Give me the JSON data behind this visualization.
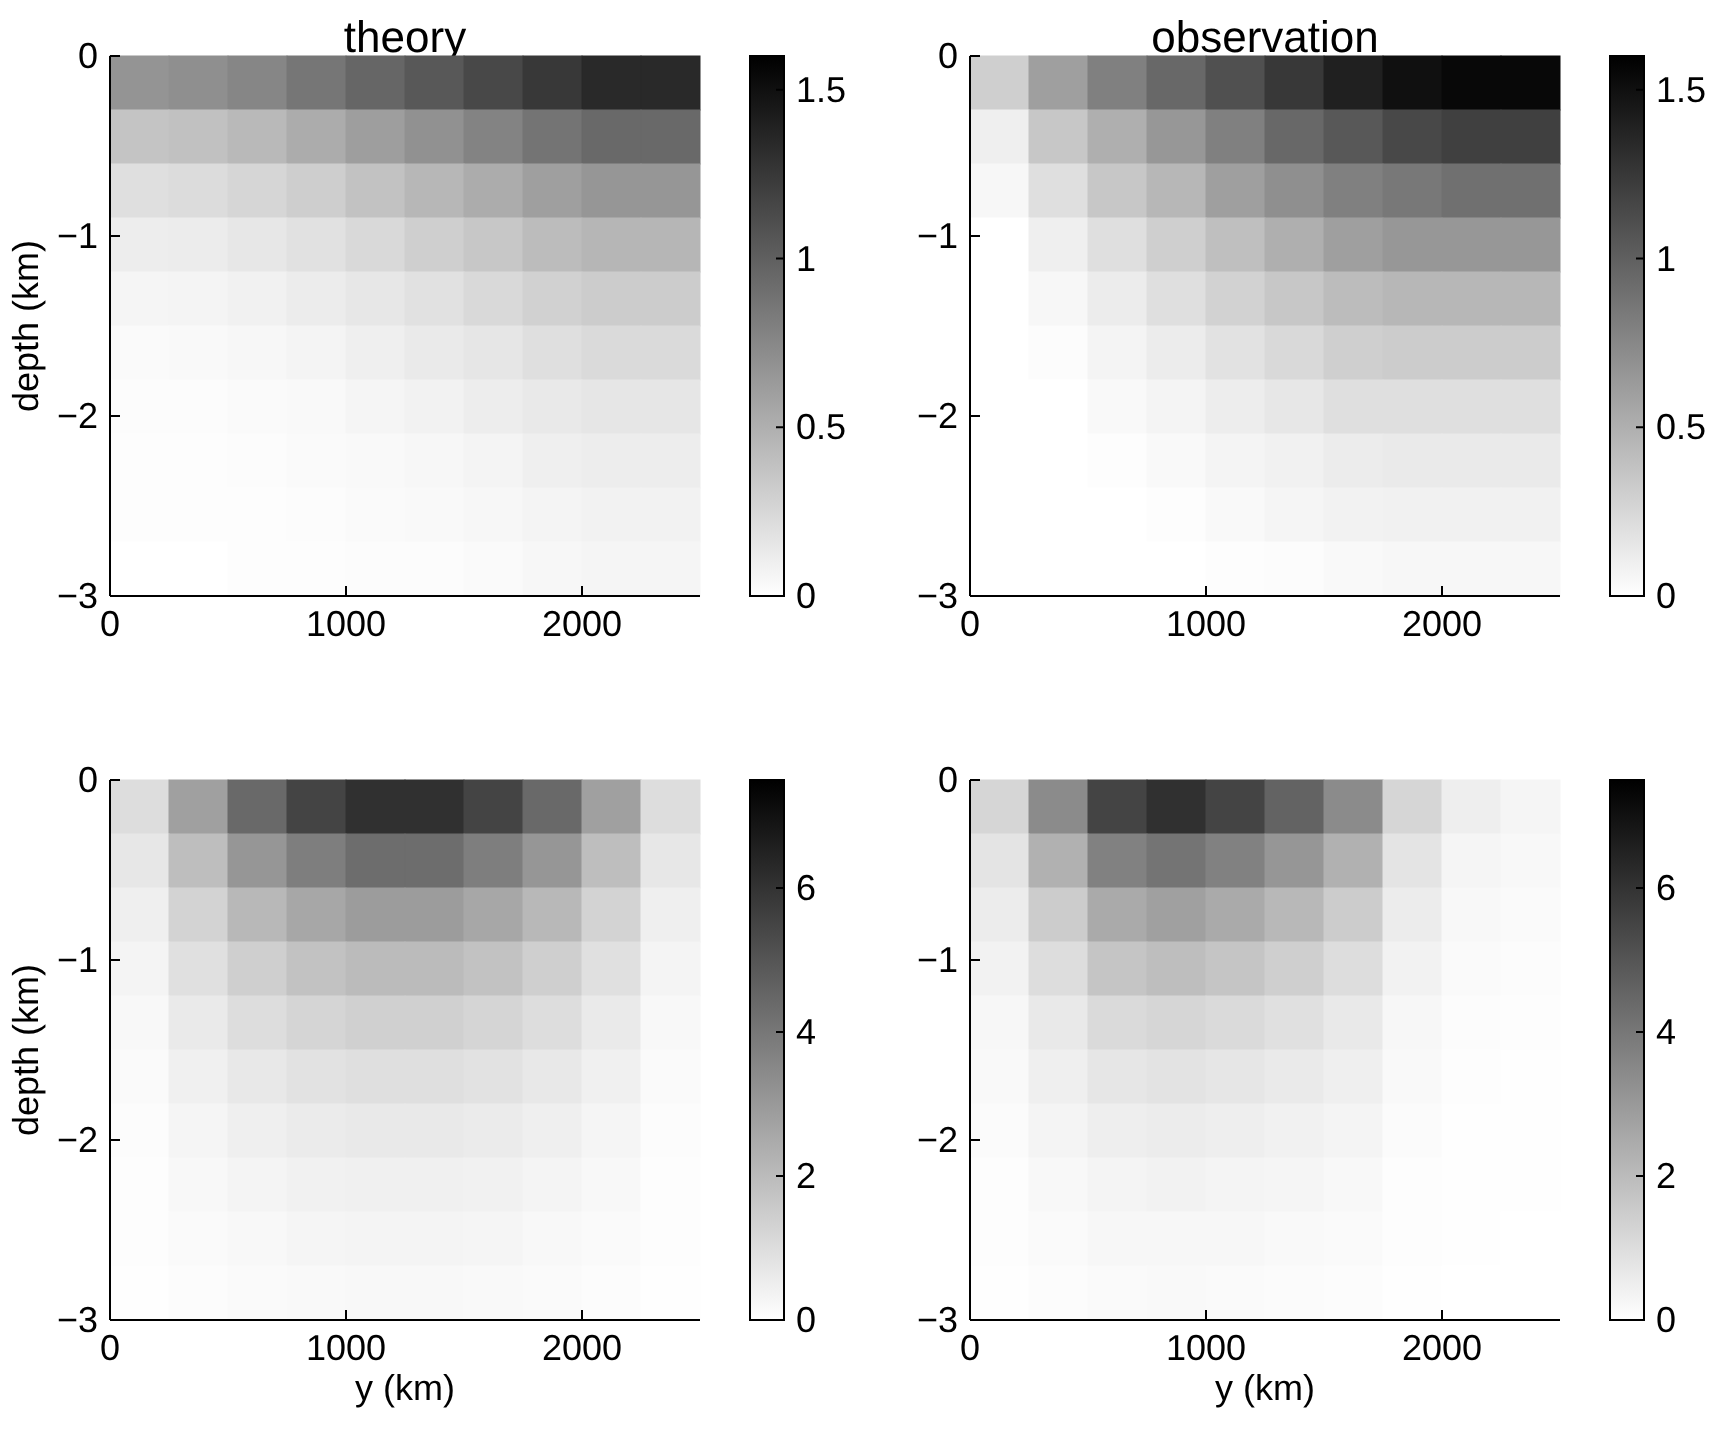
{
  "chart_data": [
    {
      "type": "heatmap",
      "title": "theory",
      "ylabel": "depth (km)",
      "x": [
        125,
        375,
        625,
        875,
        1125,
        1375,
        1625,
        1875,
        2125,
        2375
      ],
      "y": [
        -0.15,
        -0.45,
        -0.75,
        -1.05,
        -1.35,
        -1.65,
        -1.95,
        -2.25,
        -2.55,
        -2.85
      ],
      "xlim": [
        0,
        2500
      ],
      "xticks": [
        0,
        1000,
        2000
      ],
      "ylim": [
        -3,
        0
      ],
      "yticks": [
        -3,
        -2,
        -1,
        0
      ],
      "clim": [
        0,
        1.6
      ],
      "cticks": [
        0,
        0.5,
        1,
        1.5
      ],
      "cells": [
        [
          0.67,
          0.7,
          0.76,
          0.86,
          0.96,
          1.05,
          1.15,
          1.25,
          1.34,
          1.34
        ],
        [
          0.37,
          0.39,
          0.44,
          0.52,
          0.61,
          0.69,
          0.78,
          0.87,
          0.94,
          0.94
        ],
        [
          0.2,
          0.22,
          0.26,
          0.31,
          0.38,
          0.45,
          0.52,
          0.6,
          0.66,
          0.66
        ],
        [
          0.11,
          0.12,
          0.15,
          0.19,
          0.24,
          0.3,
          0.35,
          0.42,
          0.46,
          0.46
        ],
        [
          0.06,
          0.07,
          0.09,
          0.12,
          0.15,
          0.19,
          0.24,
          0.29,
          0.32,
          0.32
        ],
        [
          0.03,
          0.04,
          0.05,
          0.07,
          0.1,
          0.13,
          0.16,
          0.2,
          0.23,
          0.23
        ],
        [
          0.02,
          0.02,
          0.03,
          0.04,
          0.06,
          0.08,
          0.11,
          0.14,
          0.16,
          0.16
        ],
        [
          0.01,
          0.01,
          0.02,
          0.03,
          0.04,
          0.05,
          0.07,
          0.1,
          0.11,
          0.11
        ],
        [
          0.01,
          0.01,
          0.01,
          0.02,
          0.03,
          0.04,
          0.05,
          0.07,
          0.08,
          0.08
        ],
        [
          0,
          0,
          0.01,
          0.01,
          0.02,
          0.02,
          0.03,
          0.05,
          0.06,
          0.06
        ]
      ]
    },
    {
      "type": "heatmap",
      "title": "observation",
      "x": [
        125,
        375,
        625,
        875,
        1125,
        1375,
        1625,
        1875,
        2125,
        2375
      ],
      "y": [
        -0.15,
        -0.45,
        -0.75,
        -1.05,
        -1.35,
        -1.65,
        -1.95,
        -2.25,
        -2.55,
        -2.85
      ],
      "xlim": [
        0,
        2500
      ],
      "xticks": [
        0,
        1000,
        2000
      ],
      "ylim": [
        -3,
        0
      ],
      "yticks": [
        -3,
        -2,
        -1,
        0
      ],
      "clim": [
        0,
        1.6
      ],
      "cticks": [
        0,
        0.5,
        1,
        1.5
      ],
      "cells": [
        [
          0.3,
          0.6,
          0.8,
          0.95,
          1.1,
          1.25,
          1.4,
          1.5,
          1.55,
          1.55
        ],
        [
          0.1,
          0.35,
          0.5,
          0.65,
          0.8,
          0.95,
          1.05,
          1.15,
          1.2,
          1.2
        ],
        [
          0.05,
          0.2,
          0.35,
          0.45,
          0.6,
          0.7,
          0.8,
          0.85,
          0.9,
          0.9
        ],
        [
          0,
          0.1,
          0.2,
          0.3,
          0.4,
          0.5,
          0.6,
          0.65,
          0.65,
          0.65
        ],
        [
          0,
          0.05,
          0.12,
          0.2,
          0.28,
          0.35,
          0.42,
          0.45,
          0.45,
          0.45
        ],
        [
          0,
          0.02,
          0.07,
          0.12,
          0.18,
          0.24,
          0.3,
          0.32,
          0.32,
          0.32
        ],
        [
          0,
          0,
          0.04,
          0.07,
          0.11,
          0.15,
          0.2,
          0.2,
          0.2,
          0.2
        ],
        [
          0,
          0,
          0.01,
          0.04,
          0.07,
          0.09,
          0.12,
          0.13,
          0.13,
          0.13
        ],
        [
          0,
          0,
          0,
          0.01,
          0.04,
          0.06,
          0.08,
          0.09,
          0.09,
          0.09
        ],
        [
          0,
          0,
          0,
          0,
          0.01,
          0.02,
          0.04,
          0.05,
          0.05,
          0.05
        ]
      ]
    },
    {
      "type": "heatmap",
      "ylabel": "depth (km)",
      "xlabel": "y (km)",
      "x": [
        125,
        375,
        625,
        875,
        1125,
        1375,
        1625,
        1875,
        2125,
        2375
      ],
      "y": [
        -0.15,
        -0.45,
        -0.75,
        -1.05,
        -1.35,
        -1.65,
        -1.95,
        -2.25,
        -2.55,
        -2.85
      ],
      "xlim": [
        0,
        2500
      ],
      "xticks": [
        0,
        1000,
        2000
      ],
      "ylim": [
        -3,
        0
      ],
      "yticks": [
        -3,
        -2,
        -1,
        0
      ],
      "clim": [
        0,
        7.5
      ],
      "cticks": [
        0,
        2,
        4,
        6
      ],
      "cells": [
        [
          1,
          2.8,
          4.4,
          5.5,
          6.1,
          6.1,
          5.5,
          4.4,
          2.8,
          1
        ],
        [
          0.7,
          1.9,
          3.1,
          3.8,
          4.3,
          4.3,
          3.8,
          3.1,
          1.9,
          0.7
        ],
        [
          0.46,
          1.3,
          2.1,
          2.6,
          2.9,
          2.9,
          2.6,
          2.1,
          1.3,
          0.46
        ],
        [
          0.32,
          0.9,
          1.4,
          1.8,
          2,
          2,
          1.8,
          1.4,
          0.9,
          0.32
        ],
        [
          0.22,
          0.63,
          0.99,
          1.25,
          1.39,
          1.39,
          1.25,
          0.99,
          0.63,
          0.22
        ],
        [
          0.15,
          0.43,
          0.67,
          0.85,
          0.94,
          0.94,
          0.85,
          0.67,
          0.43,
          0.15
        ],
        [
          0.1,
          0.29,
          0.46,
          0.58,
          0.64,
          0.64,
          0.58,
          0.46,
          0.29,
          0.1
        ],
        [
          0.07,
          0.2,
          0.32,
          0.4,
          0.45,
          0.45,
          0.4,
          0.32,
          0.2,
          0.07
        ],
        [
          0.05,
          0.14,
          0.22,
          0.28,
          0.31,
          0.31,
          0.28,
          0.22,
          0.14,
          0.05
        ],
        [
          0.03,
          0.09,
          0.15,
          0.19,
          0.21,
          0.21,
          0.19,
          0.15,
          0.09,
          0.03
        ]
      ]
    },
    {
      "type": "heatmap",
      "xlabel": "y (km)",
      "x": [
        125,
        375,
        625,
        875,
        1125,
        1375,
        1625,
        1875,
        2125,
        2375
      ],
      "y": [
        -0.15,
        -0.45,
        -0.75,
        -1.05,
        -1.35,
        -1.65,
        -1.95,
        -2.25,
        -2.55,
        -2.85
      ],
      "xlim": [
        0,
        2500
      ],
      "xticks": [
        0,
        1000,
        2000
      ],
      "ylim": [
        -3,
        0
      ],
      "yticks": [
        -3,
        -2,
        -1,
        0
      ],
      "clim": [
        0,
        7.5
      ],
      "cticks": [
        0,
        2,
        4,
        6
      ],
      "cells": [
        [
          1.2,
          3.4,
          5.5,
          6.1,
          5.5,
          4.6,
          3.4,
          1.2,
          0.5,
          0.3
        ],
        [
          0.8,
          2.3,
          3.7,
          4.1,
          3.7,
          3.1,
          2.3,
          0.8,
          0.3,
          0.2
        ],
        [
          0.56,
          1.5,
          2.5,
          2.8,
          2.5,
          2.1,
          1.5,
          0.56,
          0.22,
          0.14
        ],
        [
          0.38,
          1,
          1.7,
          1.9,
          1.7,
          1.4,
          1,
          0.38,
          0.15,
          0.1
        ],
        [
          0.24,
          0.66,
          1.1,
          1.2,
          1.1,
          0.9,
          0.66,
          0.24,
          0.1,
          0.06
        ],
        [
          0.17,
          0.46,
          0.75,
          0.83,
          0.75,
          0.62,
          0.46,
          0.17,
          0.07,
          0.04
        ],
        [
          0.11,
          0.31,
          0.5,
          0.56,
          0.5,
          0.42,
          0.31,
          0.11,
          0.04,
          0.03
        ],
        [
          0.07,
          0.2,
          0.33,
          0.37,
          0.33,
          0.28,
          0.2,
          0.07,
          0.03,
          0.02
        ],
        [
          0.05,
          0.14,
          0.23,
          0.25,
          0.23,
          0.19,
          0.14,
          0.05,
          0.02,
          0.01
        ],
        [
          0.03,
          0.09,
          0.15,
          0.17,
          0.15,
          0.13,
          0.09,
          0.03,
          0.01,
          0.01
        ]
      ]
    }
  ]
}
